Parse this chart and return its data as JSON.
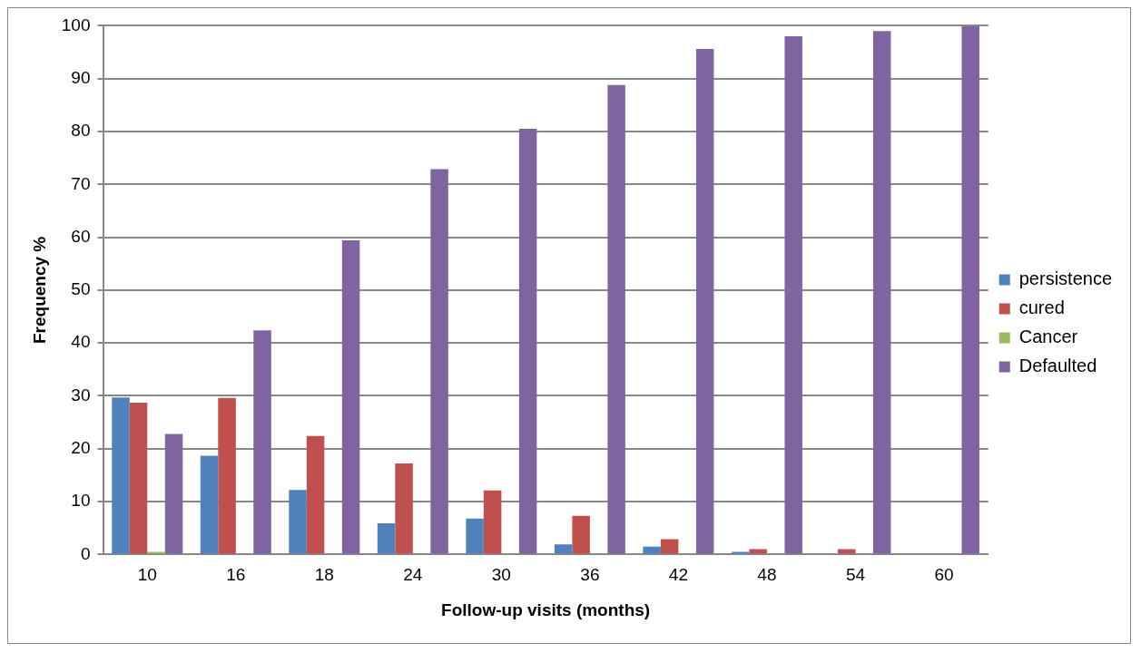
{
  "chart_data": {
    "type": "bar",
    "xlabel": "Follow-up visits (months)",
    "ylabel": "Frequency %",
    "categories": [
      "10",
      "16",
      "18",
      "24",
      "30",
      "36",
      "42",
      "48",
      "54",
      "60"
    ],
    "series": [
      {
        "name": "persistence",
        "color": "#4f81bd",
        "values": [
          29.7,
          18.7,
          12.2,
          5.9,
          6.8,
          1.9,
          1.5,
          0.5,
          0,
          0
        ]
      },
      {
        "name": "cured",
        "color": "#c0504d",
        "values": [
          28.7,
          29.6,
          22.4,
          17.2,
          12.1,
          7.3,
          2.9,
          1.0,
          1.0,
          0
        ]
      },
      {
        "name": "Cancer",
        "color": "#9bbb59",
        "values": [
          0.5,
          0,
          0,
          0,
          0,
          0,
          0,
          0,
          0,
          0
        ]
      },
      {
        "name": "Defaulted",
        "color": "#8064a2",
        "values": [
          22.8,
          42.4,
          59.4,
          72.9,
          80.5,
          88.8,
          95.6,
          98.0,
          99.0,
          100
        ]
      }
    ],
    "ylim": [
      0,
      100
    ],
    "yticks": [
      0,
      10,
      20,
      30,
      40,
      50,
      60,
      70,
      80,
      90,
      100
    ],
    "grid": "y",
    "legend": "right"
  }
}
